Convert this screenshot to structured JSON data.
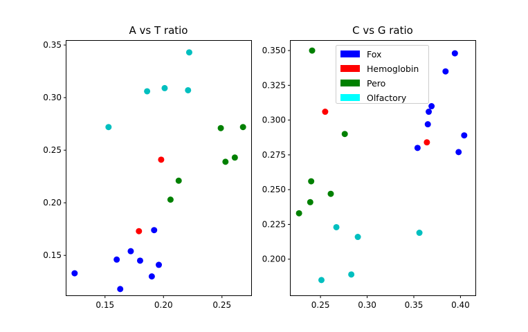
{
  "chart_data": [
    {
      "type": "scatter",
      "title": "A vs T ratio",
      "xlabel": "",
      "ylabel": "",
      "xlim": [
        0.117,
        0.275
      ],
      "ylim": [
        0.112,
        0.354
      ],
      "xticks": [
        0.15,
        0.2,
        0.25
      ],
      "xtick_labels": [
        "0.15",
        "0.20",
        "0.25"
      ],
      "yticks": [
        0.15,
        0.2,
        0.25,
        0.3,
        0.35
      ],
      "ytick_labels": [
        "0.15",
        "0.20",
        "0.25",
        "0.30",
        "0.35"
      ],
      "grid": false,
      "series": [
        {
          "name": "Fox",
          "color": "#0000ff",
          "points": [
            [
              0.124,
              0.133
            ],
            [
              0.16,
              0.146
            ],
            [
              0.163,
              0.118
            ],
            [
              0.172,
              0.154
            ],
            [
              0.18,
              0.145
            ],
            [
              0.19,
              0.13
            ],
            [
              0.192,
              0.174
            ],
            [
              0.196,
              0.141
            ]
          ]
        },
        {
          "name": "Hemoglobin",
          "color": "#ff0000",
          "points": [
            [
              0.179,
              0.173
            ],
            [
              0.198,
              0.241
            ]
          ]
        },
        {
          "name": "Pero",
          "color": "#008000",
          "points": [
            [
              0.206,
              0.203
            ],
            [
              0.213,
              0.221
            ],
            [
              0.249,
              0.271
            ],
            [
              0.253,
              0.239
            ],
            [
              0.261,
              0.243
            ],
            [
              0.268,
              0.272
            ]
          ]
        },
        {
          "name": "Olfactory",
          "color": "#00bfbf",
          "points": [
            [
              0.153,
              0.272
            ],
            [
              0.186,
              0.306
            ],
            [
              0.201,
              0.309
            ],
            [
              0.221,
              0.307
            ],
            [
              0.222,
              0.343
            ]
          ]
        }
      ]
    },
    {
      "type": "scatter",
      "title": "C vs G ratio",
      "xlabel": "",
      "ylabel": "",
      "xlim": [
        0.218,
        0.416
      ],
      "ylim": [
        0.174,
        0.357
      ],
      "xticks": [
        0.25,
        0.3,
        0.35,
        0.4
      ],
      "xtick_labels": [
        "0.25",
        "0.30",
        "0.35",
        "0.40"
      ],
      "yticks": [
        0.2,
        0.225,
        0.25,
        0.275,
        0.3,
        0.325,
        0.35
      ],
      "ytick_labels": [
        "0.200",
        "0.225",
        "0.250",
        "0.275",
        "0.300",
        "0.325",
        "0.350"
      ],
      "grid": false,
      "legend": {
        "placement": "upper center",
        "entries": [
          {
            "label": "Fox",
            "color": "#0000ff"
          },
          {
            "label": "Hemoglobin",
            "color": "#ff0000"
          },
          {
            "label": "Pero",
            "color": "#008000"
          },
          {
            "label": "Olfactory",
            "color": "#00ffff"
          }
        ]
      },
      "series": [
        {
          "name": "Fox",
          "color": "#0000ff",
          "points": [
            [
              0.354,
              0.28
            ],
            [
              0.365,
              0.297
            ],
            [
              0.366,
              0.306
            ],
            [
              0.369,
              0.31
            ],
            [
              0.384,
              0.335
            ],
            [
              0.394,
              0.348
            ],
            [
              0.398,
              0.277
            ],
            [
              0.404,
              0.289
            ]
          ]
        },
        {
          "name": "Hemoglobin",
          "color": "#ff0000",
          "points": [
            [
              0.255,
              0.306
            ],
            [
              0.364,
              0.284
            ]
          ]
        },
        {
          "name": "Pero",
          "color": "#008000",
          "points": [
            [
              0.227,
              0.233
            ],
            [
              0.239,
              0.241
            ],
            [
              0.24,
              0.256
            ],
            [
              0.241,
              0.35
            ],
            [
              0.261,
              0.247
            ],
            [
              0.276,
              0.29
            ]
          ]
        },
        {
          "name": "Olfactory",
          "color": "#00bfbf",
          "points": [
            [
              0.251,
              0.185
            ],
            [
              0.267,
              0.223
            ],
            [
              0.283,
              0.189
            ],
            [
              0.29,
              0.216
            ],
            [
              0.356,
              0.219
            ]
          ]
        }
      ]
    }
  ]
}
